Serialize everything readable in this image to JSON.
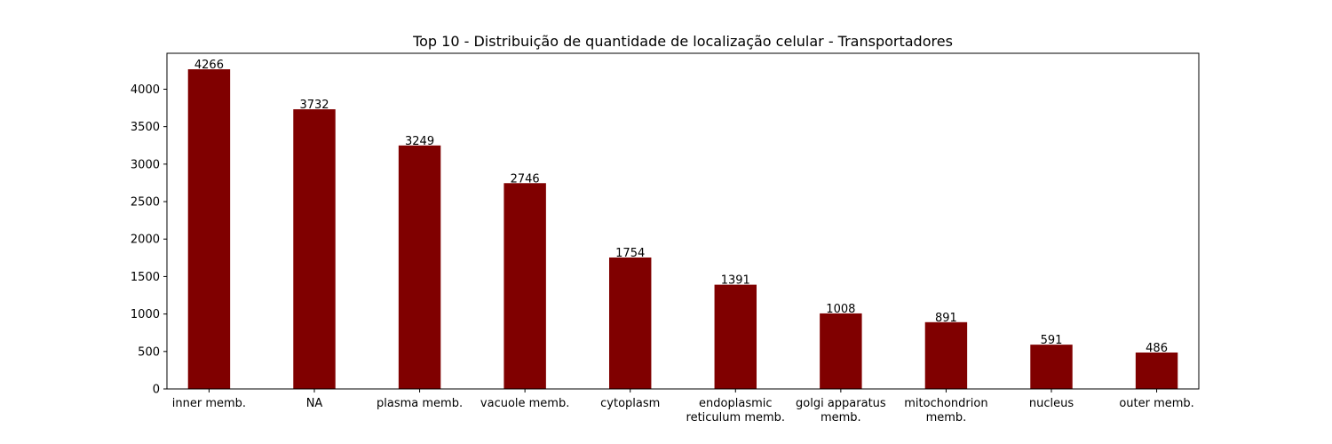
{
  "chart_data": {
    "type": "bar",
    "title": "Top 10 - Distribuição de quantidade de localização celular - Transportadores",
    "xlabel": "",
    "ylabel": "",
    "categories": [
      [
        "inner memb."
      ],
      [
        "NA"
      ],
      [
        "plasma memb."
      ],
      [
        "vacuole memb."
      ],
      [
        "cytoplasm"
      ],
      [
        "endoplasmic",
        "reticulum memb."
      ],
      [
        "golgi apparatus",
        "memb."
      ],
      [
        "mitochondrion",
        "memb."
      ],
      [
        "nucleus"
      ],
      [
        "outer memb."
      ]
    ],
    "values": [
      4266,
      3732,
      3249,
      2746,
      1754,
      1391,
      1008,
      891,
      591,
      486
    ],
    "data_labels": [
      "4266",
      "3732",
      "3249",
      "2746",
      "1754",
      "1391",
      "1008",
      "891",
      "591",
      "486"
    ],
    "yticks": [
      0,
      500,
      1000,
      1500,
      2000,
      2500,
      3000,
      3500,
      4000
    ],
    "ylim": [
      0,
      4479.3
    ],
    "grid": false,
    "legend": "none",
    "bar_color": "#800000"
  }
}
